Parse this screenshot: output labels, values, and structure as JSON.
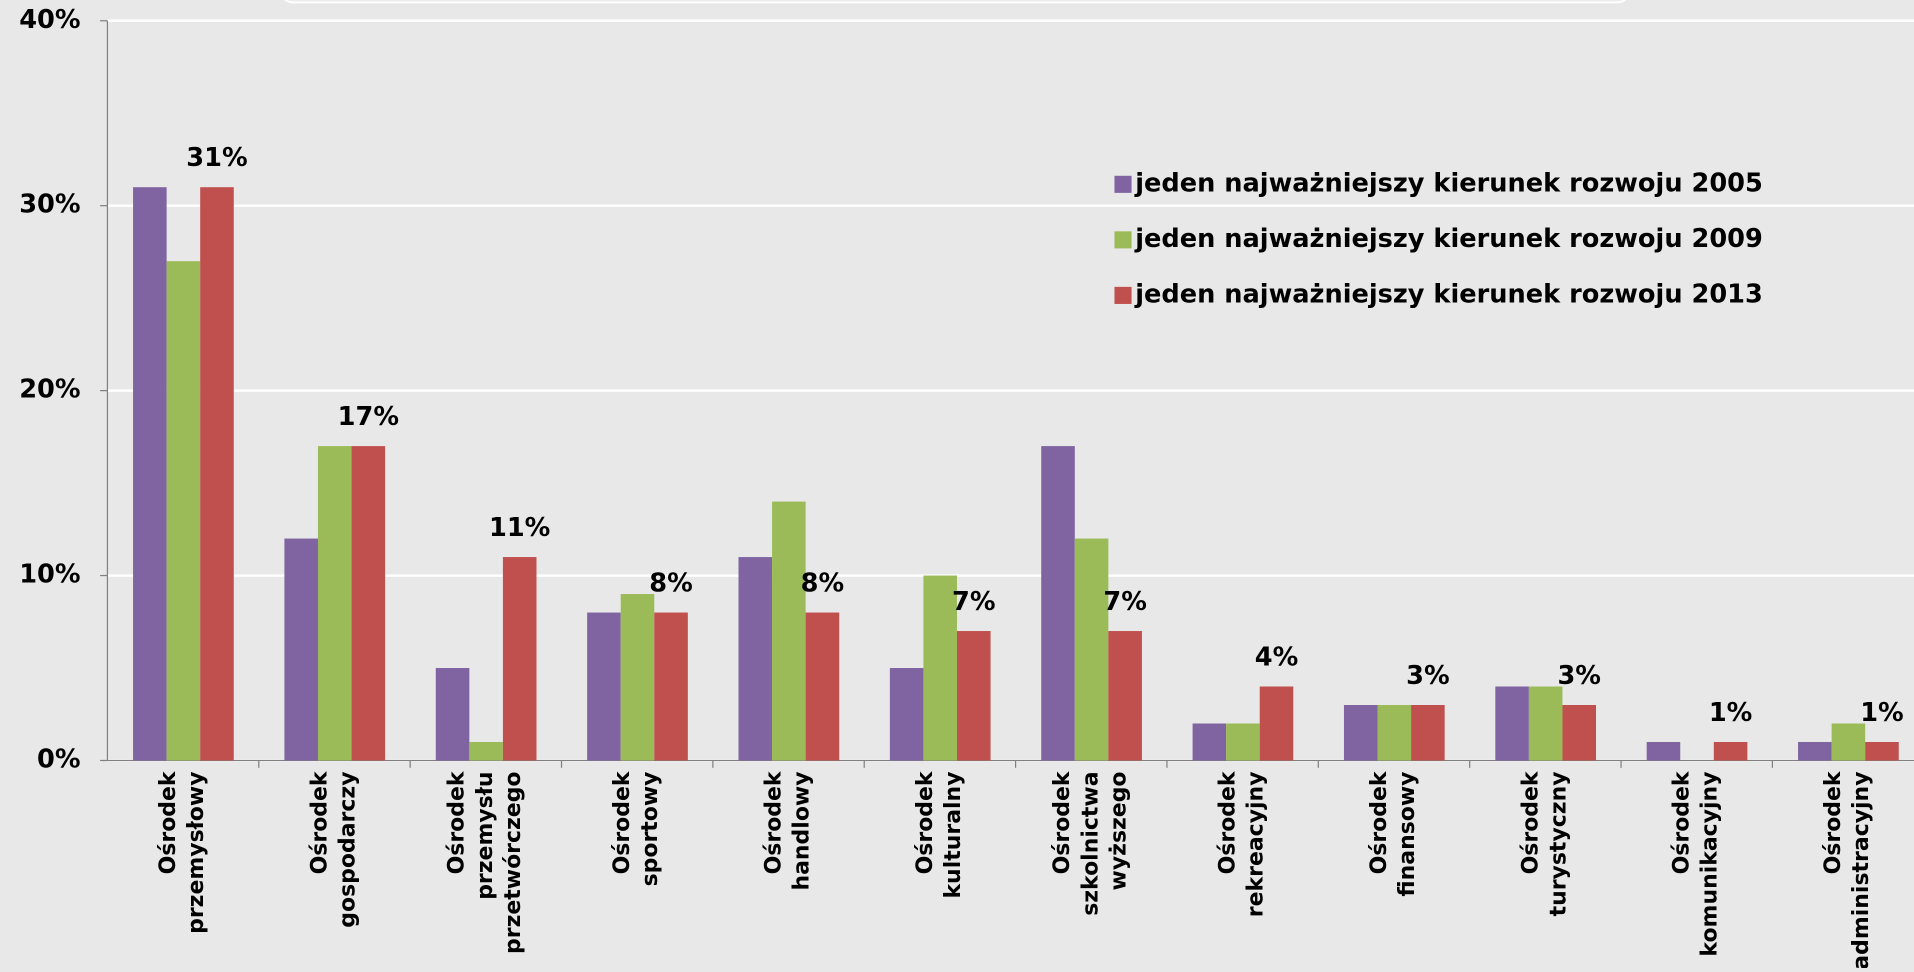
{
  "chart_data": {
    "type": "bar",
    "categories": [
      [
        "Ośrodek",
        "przemysłowy"
      ],
      [
        "Ośrodek",
        "gospodarczy"
      ],
      [
        "Ośrodek",
        "przemysłu",
        "przetwórczego"
      ],
      [
        "Ośrodek",
        "sportowy"
      ],
      [
        "Ośrodek",
        "handlowy"
      ],
      [
        "Ośrodek",
        "kulturalny"
      ],
      [
        "Ośrodek",
        "szkolnictwa",
        "wyższego"
      ],
      [
        "Ośrodek",
        "rekreacyjny"
      ],
      [
        "Ośrodek",
        "finansowy"
      ],
      [
        "Ośrodek",
        "turystyczny"
      ],
      [
        "Ośrodek",
        "komunikacyjny"
      ],
      [
        "Ośrodek",
        "administracyjny"
      ]
    ],
    "series": [
      {
        "name": "jeden najważniejszy kierunek rozwoju 2005",
        "color": "#8064a2",
        "values": [
          31,
          12,
          5,
          8,
          11,
          5,
          17,
          2,
          3,
          4,
          1,
          1
        ]
      },
      {
        "name": "jeden najważniejszy kierunek rozwoju 2009",
        "color": "#9bbb59",
        "values": [
          27,
          17,
          1,
          9,
          14,
          10,
          12,
          2,
          3,
          4,
          0,
          2
        ]
      },
      {
        "name": "jeden najważniejszy kierunek rozwoju 2013",
        "color": "#c0504d",
        "values": [
          31,
          17,
          11,
          8,
          8,
          7,
          7,
          4,
          3,
          3,
          1,
          1
        ],
        "value_labels": [
          "31%",
          "17%",
          "11%",
          "8%",
          "8%",
          "7%",
          "7%",
          "4%",
          "3%",
          "3%",
          "1%",
          "1%"
        ]
      }
    ],
    "ylim": [
      0,
      40
    ],
    "yticks": [
      {
        "value": 0,
        "label": "0%"
      },
      {
        "value": 10,
        "label": "10%"
      },
      {
        "value": 20,
        "label": "20%"
      },
      {
        "value": 30,
        "label": "30%"
      },
      {
        "value": 40,
        "label": "40%"
      }
    ],
    "grid": true,
    "legend": "upper right"
  }
}
